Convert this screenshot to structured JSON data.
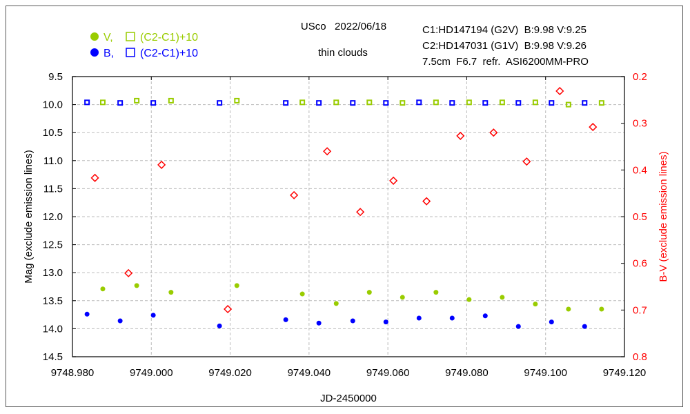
{
  "chart_data": {
    "type": "scatter",
    "header": {
      "target": "USco   2022/06/18",
      "note": "thin clouds",
      "comp1": "C1:HD147194 (G2V)  B:9.98 V:9.25",
      "comp2": "C2:HD147031 (G1V)  B:9.98 V:9.26",
      "equipment": "7.5cm  F6.7  refr.  ASI6200MM-PRO"
    },
    "legend": [
      {
        "dot_label": "V,",
        "square_label": "(C2-C1)+10",
        "color": "#99cc00"
      },
      {
        "dot_label": "B,",
        "square_label": "(C2-C1)+10",
        "color": "#0000ff"
      }
    ],
    "xlabel": "JD-2450000",
    "ylabel": "Mag (exclude emission lines)",
    "y2label": "B-V (exclude emission lines)",
    "xlim": [
      9748.98,
      9749.12
    ],
    "ylim": [
      9.5,
      14.5
    ],
    "y2lim": [
      0.2,
      0.8
    ],
    "xticks": [
      "9748.980",
      "9749.000",
      "9749.020",
      "9749.040",
      "9749.060",
      "9749.080",
      "9749.100",
      "9749.120"
    ],
    "yticks": [
      "9.5",
      "10.0",
      "10.5",
      "11.0",
      "11.5",
      "12.0",
      "12.5",
      "13.0",
      "13.5",
      "14.0",
      "14.5"
    ],
    "y2ticks": [
      "0.2",
      "0.3",
      "0.4",
      "0.5",
      "0.6",
      "0.7",
      "0.8"
    ],
    "grid": true,
    "colors": {
      "V": "#99cc00",
      "B": "#0000ff",
      "BV": "#ff0000"
    },
    "series": [
      {
        "name": "V",
        "marker": "dot",
        "axis": "left",
        "color": "#99cc00",
        "x": [
          9748.9877,
          9748.9963,
          9749.005,
          9749.0217,
          9749.0383,
          9749.0469,
          9749.0553,
          9749.0637,
          9749.0722,
          9749.0806,
          9749.089,
          9749.0974,
          9749.1058,
          9749.1142
        ],
        "y": [
          13.29,
          13.23,
          13.35,
          13.23,
          13.38,
          13.55,
          13.35,
          13.44,
          13.35,
          13.48,
          13.44,
          13.56,
          13.65,
          13.65
        ]
      },
      {
        "name": "V (C2-C1)+10",
        "marker": "square",
        "axis": "left",
        "color": "#99cc00",
        "x": [
          9748.9877,
          9748.9963,
          9749.005,
          9749.0217,
          9749.0383,
          9749.0469,
          9749.0553,
          9749.0637,
          9749.0722,
          9749.0806,
          9749.089,
          9749.0974,
          9749.1058,
          9749.1142
        ],
        "y": [
          9.96,
          9.93,
          9.93,
          9.93,
          9.96,
          9.96,
          9.96,
          9.97,
          9.96,
          9.96,
          9.96,
          9.96,
          10.0,
          9.97
        ]
      },
      {
        "name": "B",
        "marker": "dot",
        "axis": "left",
        "color": "#0000ff",
        "x": [
          9748.9837,
          9748.9921,
          9749.0005,
          9749.0173,
          9749.0341,
          9749.0425,
          9749.0511,
          9749.0595,
          9749.0679,
          9749.0763,
          9749.0847,
          9749.0931,
          9749.1015,
          9749.1099
        ],
        "y": [
          13.74,
          13.86,
          13.76,
          13.95,
          13.84,
          13.9,
          13.86,
          13.88,
          13.81,
          13.81,
          13.77,
          13.96,
          13.88,
          13.96
        ]
      },
      {
        "name": "B (C2-C1)+10",
        "marker": "square",
        "axis": "left",
        "color": "#0000ff",
        "x": [
          9748.9837,
          9748.9921,
          9749.0005,
          9749.0173,
          9749.0341,
          9749.0425,
          9749.0511,
          9749.0595,
          9749.0679,
          9749.0763,
          9749.0847,
          9749.0931,
          9749.1015,
          9749.1099
        ],
        "y": [
          9.96,
          9.97,
          9.97,
          9.97,
          9.97,
          9.97,
          9.97,
          9.97,
          9.96,
          9.97,
          9.97,
          9.97,
          9.97,
          9.97
        ]
      },
      {
        "name": "B-V",
        "marker": "diamond",
        "axis": "right",
        "color": "#ff0000",
        "x": [
          9748.9857,
          9748.9942,
          9749.0026,
          9749.0194,
          9749.0362,
          9749.0446,
          9749.053,
          9749.0614,
          9749.0698,
          9749.0784,
          9749.0868,
          9749.0952,
          9749.1036,
          9749.112
        ],
        "y": [
          0.417,
          0.621,
          0.389,
          0.698,
          0.454,
          0.36,
          0.49,
          0.423,
          0.467,
          0.327,
          0.32,
          0.382,
          0.231,
          0.308
        ]
      }
    ]
  }
}
